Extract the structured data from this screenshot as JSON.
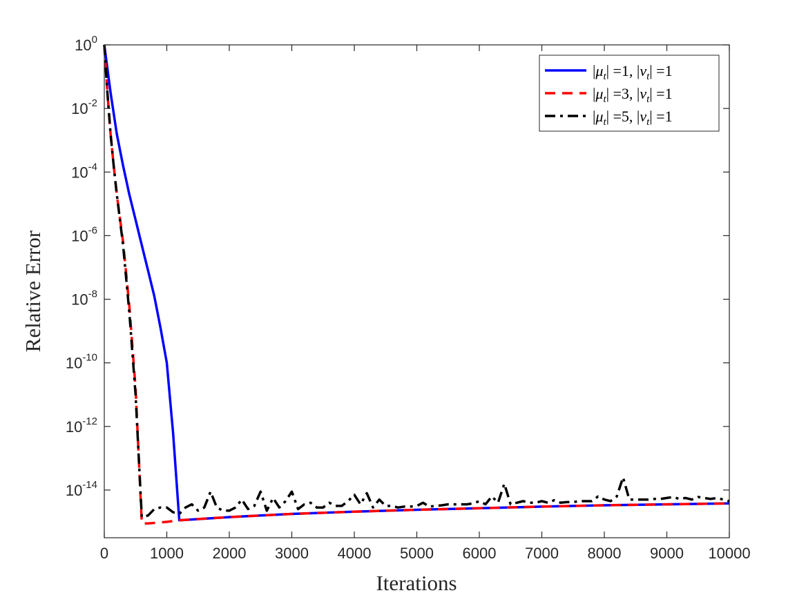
{
  "chart_data": {
    "type": "line",
    "title": "",
    "xlabel": "Iterations",
    "ylabel": "Relative Error",
    "xlim": [
      0,
      10000
    ],
    "ylim_log10": [
      -15.5,
      0
    ],
    "yscale": "log",
    "x_ticks": [
      0,
      1000,
      2000,
      3000,
      4000,
      5000,
      6000,
      7000,
      8000,
      9000,
      10000
    ],
    "x_tick_labels": [
      "0",
      "1000",
      "2000",
      "3000",
      "4000",
      "5000",
      "6000",
      "7000",
      "8000",
      "9000",
      "10000"
    ],
    "y_ticks": [
      {
        "base": "10",
        "exp": "0",
        "log10": 0
      },
      {
        "base": "10",
        "exp": "-2",
        "log10": -2
      },
      {
        "base": "10",
        "exp": "-4",
        "log10": -4
      },
      {
        "base": "10",
        "exp": "-6",
        "log10": -6
      },
      {
        "base": "10",
        "exp": "-8",
        "log10": -8
      },
      {
        "base": "10",
        "exp": "-10",
        "log10": -10
      },
      {
        "base": "10",
        "exp": "-12",
        "log10": -12
      },
      {
        "base": "10",
        "exp": "-14",
        "log10": -14
      }
    ],
    "grid": false,
    "legend_position": "top-right",
    "series": [
      {
        "legend_parts": [
          "|",
          "μ",
          "t",
          "| =1, |",
          "ν",
          "t",
          "| =1"
        ],
        "color": "#0000ff",
        "dash": "solid",
        "points_log10": [
          [
            0,
            0
          ],
          [
            100,
            -1.5
          ],
          [
            200,
            -2.8
          ],
          [
            300,
            -3.8
          ],
          [
            400,
            -4.7
          ],
          [
            500,
            -5.5
          ],
          [
            600,
            -6.3
          ],
          [
            700,
            -7.1
          ],
          [
            800,
            -7.9
          ],
          [
            900,
            -8.9
          ],
          [
            1000,
            -10.0
          ],
          [
            1100,
            -12.2
          ],
          [
            1200,
            -14.95
          ],
          [
            2000,
            -14.85
          ],
          [
            3000,
            -14.75
          ],
          [
            4000,
            -14.68
          ],
          [
            5000,
            -14.62
          ],
          [
            6000,
            -14.57
          ],
          [
            7000,
            -14.52
          ],
          [
            8000,
            -14.48
          ],
          [
            9000,
            -14.45
          ],
          [
            10000,
            -14.42
          ]
        ]
      },
      {
        "legend_parts": [
          "|",
          "μ",
          "t",
          "| =3, |",
          "ν",
          "t",
          "| =1"
        ],
        "color": "#ff0000",
        "dash": "dashed",
        "points_log10": [
          [
            0,
            0
          ],
          [
            50,
            -1.5
          ],
          [
            100,
            -2.8
          ],
          [
            150,
            -3.8
          ],
          [
            200,
            -4.7
          ],
          [
            300,
            -6.2
          ],
          [
            400,
            -8.2
          ],
          [
            500,
            -10.8
          ],
          [
            600,
            -15.05
          ],
          [
            700,
            -15.05
          ],
          [
            1000,
            -15.0
          ],
          [
            1200,
            -14.95
          ],
          [
            2000,
            -14.85
          ],
          [
            3000,
            -14.75
          ],
          [
            4000,
            -14.68
          ],
          [
            5000,
            -14.62
          ],
          [
            6000,
            -14.57
          ],
          [
            7000,
            -14.52
          ],
          [
            8000,
            -14.48
          ],
          [
            9000,
            -14.45
          ],
          [
            10000,
            -14.42
          ]
        ]
      },
      {
        "legend_parts": [
          "|",
          "μ",
          "t",
          "| =5, |",
          "ν",
          "t",
          "| =1"
        ],
        "color": "#000000",
        "dash": "dashdot",
        "points_log10": [
          [
            0,
            0
          ],
          [
            50,
            -1.5
          ],
          [
            100,
            -2.8
          ],
          [
            150,
            -3.8
          ],
          [
            200,
            -4.7
          ],
          [
            300,
            -6.3
          ],
          [
            400,
            -8.4
          ],
          [
            500,
            -11.0
          ],
          [
            600,
            -14.85
          ],
          [
            700,
            -14.8
          ],
          [
            800,
            -14.6
          ],
          [
            900,
            -14.55
          ],
          [
            1000,
            -14.55
          ],
          [
            1100,
            -14.7
          ],
          [
            1200,
            -14.75
          ],
          [
            1300,
            -14.55
          ],
          [
            1400,
            -14.45
          ],
          [
            1500,
            -14.65
          ],
          [
            1600,
            -14.55
          ],
          [
            1700,
            -14.05
          ],
          [
            1800,
            -14.55
          ],
          [
            1900,
            -14.65
          ],
          [
            2000,
            -14.65
          ],
          [
            2100,
            -14.55
          ],
          [
            2200,
            -14.3
          ],
          [
            2300,
            -14.6
          ],
          [
            2400,
            -14.5
          ],
          [
            2500,
            -14.05
          ],
          [
            2600,
            -14.65
          ],
          [
            2700,
            -14.25
          ],
          [
            2800,
            -14.55
          ],
          [
            2900,
            -14.35
          ],
          [
            3000,
            -14.05
          ],
          [
            3100,
            -14.6
          ],
          [
            3200,
            -14.45
          ],
          [
            3300,
            -14.4
          ],
          [
            3400,
            -14.55
          ],
          [
            3500,
            -14.55
          ],
          [
            3600,
            -14.4
          ],
          [
            3700,
            -14.5
          ],
          [
            3800,
            -14.5
          ],
          [
            3900,
            -14.35
          ],
          [
            4000,
            -14.15
          ],
          [
            4100,
            -14.45
          ],
          [
            4200,
            -14.1
          ],
          [
            4300,
            -14.55
          ],
          [
            4400,
            -14.3
          ],
          [
            4500,
            -14.5
          ],
          [
            4600,
            -14.5
          ],
          [
            4700,
            -14.55
          ],
          [
            4800,
            -14.52
          ],
          [
            4900,
            -14.52
          ],
          [
            5000,
            -14.5
          ],
          [
            5100,
            -14.4
          ],
          [
            5200,
            -14.52
          ],
          [
            5300,
            -14.5
          ],
          [
            5400,
            -14.48
          ],
          [
            5500,
            -14.45
          ],
          [
            5600,
            -14.45
          ],
          [
            5700,
            -14.45
          ],
          [
            5800,
            -14.45
          ],
          [
            5900,
            -14.42
          ],
          [
            6000,
            -14.35
          ],
          [
            6100,
            -14.45
          ],
          [
            6200,
            -14.2
          ],
          [
            6300,
            -14.4
          ],
          [
            6400,
            -13.8
          ],
          [
            6500,
            -14.45
          ],
          [
            6600,
            -14.4
          ],
          [
            6700,
            -14.35
          ],
          [
            6800,
            -14.4
          ],
          [
            6900,
            -14.4
          ],
          [
            7000,
            -14.35
          ],
          [
            7100,
            -14.4
          ],
          [
            7200,
            -14.32
          ],
          [
            7300,
            -14.4
          ],
          [
            7400,
            -14.38
          ],
          [
            7500,
            -14.38
          ],
          [
            7600,
            -14.35
          ],
          [
            7700,
            -14.35
          ],
          [
            7800,
            -14.35
          ],
          [
            7900,
            -14.2
          ],
          [
            8000,
            -14.3
          ],
          [
            8100,
            -14.35
          ],
          [
            8200,
            -14.2
          ],
          [
            8300,
            -13.6
          ],
          [
            8400,
            -14.3
          ],
          [
            8500,
            -14.3
          ],
          [
            8600,
            -14.3
          ],
          [
            8700,
            -14.3
          ],
          [
            8800,
            -14.28
          ],
          [
            8900,
            -14.28
          ],
          [
            9000,
            -14.25
          ],
          [
            9100,
            -14.22
          ],
          [
            9200,
            -14.28
          ],
          [
            9300,
            -14.25
          ],
          [
            9400,
            -14.3
          ],
          [
            9500,
            -14.22
          ],
          [
            9600,
            -14.25
          ],
          [
            9700,
            -14.28
          ],
          [
            9800,
            -14.25
          ],
          [
            9900,
            -14.3
          ],
          [
            10000,
            -14.35
          ]
        ]
      }
    ]
  }
}
